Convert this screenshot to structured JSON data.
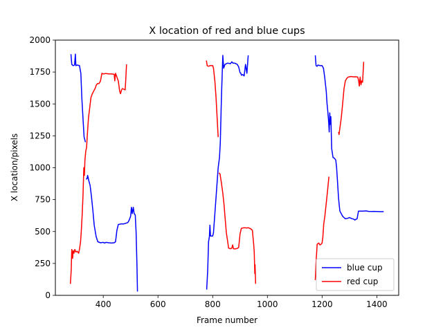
{
  "chart_data": {
    "type": "line",
    "title": "X location of red and blue cups",
    "xlabel": "Frame number",
    "ylabel": "X location/pixels",
    "xlim": [
      225,
      1480
    ],
    "ylim": [
      0,
      2000
    ],
    "xticks": [
      400,
      600,
      800,
      1000,
      1200,
      1400
    ],
    "yticks": [
      0,
      250,
      500,
      750,
      1000,
      1250,
      1500,
      1750,
      2000
    ],
    "grid": false,
    "legend_position": "lower-right",
    "series": [
      {
        "name": "blue cup",
        "color": "#0000ff",
        "segments": [
          [
            [
              282,
              1890
            ],
            [
              285,
              1810
            ],
            [
              290,
              1800
            ],
            [
              295,
              1805
            ],
            [
              298,
              1890
            ],
            [
              300,
              1800
            ],
            [
              305,
              1805
            ],
            [
              313,
              1800
            ],
            [
              318,
              1740
            ],
            [
              322,
              1540
            ],
            [
              327,
              1350
            ],
            [
              330,
              1240
            ],
            [
              335,
              1200
            ]
          ],
          [
            [
              337,
              910
            ],
            [
              341,
              915
            ],
            [
              343,
              940
            ],
            [
              347,
              900
            ],
            [
              352,
              860
            ],
            [
              357,
              770
            ],
            [
              362,
              670
            ],
            [
              367,
              550
            ],
            [
              374,
              460
            ],
            [
              380,
              420
            ],
            [
              390,
              412
            ],
            [
              400,
              415
            ],
            [
              405,
              410
            ],
            [
              410,
              415
            ],
            [
              420,
              412
            ],
            [
              430,
              410
            ],
            [
              440,
              412
            ],
            [
              445,
              420
            ],
            [
              450,
              510
            ],
            [
              455,
              555
            ],
            [
              465,
              560
            ],
            [
              475,
              560
            ],
            [
              490,
              570
            ],
            [
              495,
              590
            ],
            [
              500,
              620
            ],
            [
              503,
              690
            ],
            [
              506,
              640
            ],
            [
              510,
              690
            ],
            [
              513,
              640
            ],
            [
              517,
              630
            ],
            [
              520,
              500
            ],
            [
              523,
              250
            ],
            [
              525,
              30
            ]
          ],
          [
            [
              778,
              45
            ],
            [
              782,
              200
            ],
            [
              785,
              420
            ],
            [
              788,
              460
            ],
            [
              790,
              550
            ],
            [
              792,
              465
            ],
            [
              800,
              465
            ],
            [
              803,
              490
            ],
            [
              810,
              700
            ],
            [
              815,
              850
            ],
            [
              820,
              1000
            ],
            [
              825,
              1080
            ],
            [
              828,
              1200
            ],
            [
              832,
              1550
            ],
            [
              835,
              1750
            ],
            [
              837,
              1880
            ],
            [
              840,
              1780
            ],
            [
              845,
              1810
            ],
            [
              855,
              1820
            ],
            [
              865,
              1815
            ],
            [
              870,
              1830
            ],
            [
              874,
              1820
            ],
            [
              880,
              1820
            ],
            [
              890,
              1810
            ],
            [
              895,
              1790
            ],
            [
              900,
              1745
            ],
            [
              903,
              1740
            ],
            [
              905,
              1725
            ],
            [
              910,
              1730
            ],
            [
              915,
              1720
            ],
            [
              920,
              1810
            ],
            [
              925,
              1740
            ],
            [
              930,
              1880
            ]
          ],
          [
            [
              1175,
              1880
            ],
            [
              1178,
              1800
            ],
            [
              1182,
              1795
            ],
            [
              1185,
              1805
            ],
            [
              1192,
              1800
            ],
            [
              1200,
              1800
            ],
            [
              1205,
              1780
            ],
            [
              1210,
              1700
            ],
            [
              1215,
              1600
            ],
            [
              1218,
              1500
            ],
            [
              1221,
              1440
            ],
            [
              1224,
              1360
            ],
            [
              1226,
              1280
            ],
            [
              1228,
              1430
            ],
            [
              1230,
              1340
            ],
            [
              1232,
              1400
            ],
            [
              1235,
              1150
            ],
            [
              1240,
              1080
            ],
            [
              1245,
              1075
            ],
            [
              1250,
              1060
            ],
            [
              1253,
              1000
            ],
            [
              1256,
              900
            ],
            [
              1260,
              760
            ],
            [
              1265,
              660
            ],
            [
              1270,
              640
            ],
            [
              1275,
              620
            ],
            [
              1280,
              610
            ],
            [
              1285,
              600
            ],
            [
              1295,
              605
            ],
            [
              1300,
              610
            ],
            [
              1305,
              605
            ],
            [
              1310,
              600
            ],
            [
              1315,
              598
            ],
            [
              1320,
              590
            ],
            [
              1323,
              595
            ],
            [
              1328,
              600
            ],
            [
              1333,
              660
            ],
            [
              1340,
              660
            ],
            [
              1350,
              660
            ],
            [
              1360,
              662
            ],
            [
              1370,
              658
            ],
            [
              1380,
              657
            ],
            [
              1390,
              658
            ],
            [
              1400,
              657
            ],
            [
              1410,
              656
            ],
            [
              1425,
              656
            ]
          ]
        ]
      },
      {
        "name": "red cup",
        "color": "#ff0000",
        "segments": [
          [
            [
              280,
              90
            ],
            [
              283,
              200
            ],
            [
              285,
              360
            ],
            [
              288,
              290
            ],
            [
              290,
              350
            ],
            [
              293,
              330
            ],
            [
              296,
              360
            ],
            [
              300,
              340
            ],
            [
              305,
              345
            ],
            [
              310,
              330
            ],
            [
              313,
              360
            ],
            [
              317,
              420
            ],
            [
              320,
              510
            ],
            [
              323,
              630
            ],
            [
              326,
              780
            ],
            [
              329,
              1000
            ],
            [
              331,
              940
            ],
            [
              333,
              1060
            ],
            [
              336,
              1130
            ],
            [
              339,
              1160
            ],
            [
              342,
              1260
            ],
            [
              346,
              1390
            ],
            [
              350,
              1460
            ],
            [
              355,
              1550
            ],
            [
              360,
              1580
            ],
            [
              365,
              1600
            ],
            [
              370,
              1620
            ],
            [
              375,
              1650
            ],
            [
              380,
              1660
            ],
            [
              385,
              1660
            ],
            [
              390,
              1680
            ],
            [
              395,
              1740
            ],
            [
              400,
              1735
            ],
            [
              410,
              1738
            ],
            [
              420,
              1735
            ],
            [
              430,
              1735
            ],
            [
              440,
              1732
            ],
            [
              442,
              1680
            ],
            [
              445,
              1740
            ],
            [
              450,
              1710
            ],
            [
              455,
              1680
            ],
            [
              460,
              1600
            ],
            [
              463,
              1580
            ],
            [
              467,
              1610
            ],
            [
              470,
              1620
            ],
            [
              475,
              1615
            ],
            [
              480,
              1610
            ],
            [
              482,
              1680
            ],
            [
              485,
              1810
            ]
          ],
          [
            [
              777,
              1840
            ],
            [
              780,
              1800
            ],
            [
              785,
              1795
            ],
            [
              790,
              1800
            ],
            [
              795,
              1800
            ],
            [
              800,
              1800
            ],
            [
              803,
              1780
            ],
            [
              808,
              1680
            ],
            [
              812,
              1560
            ],
            [
              816,
              1400
            ],
            [
              820,
              1240
            ]
          ],
          [
            [
              823,
              960
            ],
            [
              827,
              950
            ],
            [
              832,
              880
            ],
            [
              837,
              800
            ],
            [
              841,
              720
            ],
            [
              845,
              620
            ],
            [
              850,
              490
            ],
            [
              855,
              420
            ],
            [
              858,
              370
            ],
            [
              865,
              365
            ],
            [
              870,
              370
            ],
            [
              873,
              395
            ],
            [
              876,
              365
            ],
            [
              885,
              365
            ],
            [
              890,
              368
            ],
            [
              895,
              375
            ],
            [
              900,
              480
            ],
            [
              905,
              525
            ],
            [
              915,
              530
            ],
            [
              925,
              528
            ],
            [
              930,
              530
            ],
            [
              935,
              525
            ],
            [
              940,
              520
            ],
            [
              945,
              510
            ],
            [
              950,
              400
            ],
            [
              952,
              340
            ],
            [
              954,
              170
            ],
            [
              955,
              240
            ],
            [
              957,
              90
            ]
          ],
          [
            [
              1175,
              120
            ],
            [
              1178,
              260
            ],
            [
              1182,
              400
            ],
            [
              1188,
              410
            ],
            [
              1192,
              395
            ],
            [
              1196,
              400
            ],
            [
              1200,
              410
            ],
            [
              1203,
              460
            ],
            [
              1206,
              560
            ],
            [
              1210,
              620
            ],
            [
              1215,
              720
            ],
            [
              1220,
              820
            ],
            [
              1225,
              930
            ]
          ],
          [
            [
              1260,
              1280
            ],
            [
              1262,
              1260
            ],
            [
              1265,
              1310
            ],
            [
              1270,
              1390
            ],
            [
              1275,
              1500
            ],
            [
              1280,
              1620
            ],
            [
              1285,
              1680
            ],
            [
              1290,
              1700
            ],
            [
              1295,
              1710
            ],
            [
              1305,
              1715
            ],
            [
              1315,
              1712
            ],
            [
              1325,
              1713
            ],
            [
              1330,
              1710
            ],
            [
              1333,
              1690
            ],
            [
              1336,
              1640
            ],
            [
              1339,
              1710
            ],
            [
              1342,
              1650
            ],
            [
              1345,
              1680
            ],
            [
              1348,
              1670
            ],
            [
              1350,
              1750
            ],
            [
              1352,
              1830
            ]
          ]
        ]
      }
    ]
  }
}
